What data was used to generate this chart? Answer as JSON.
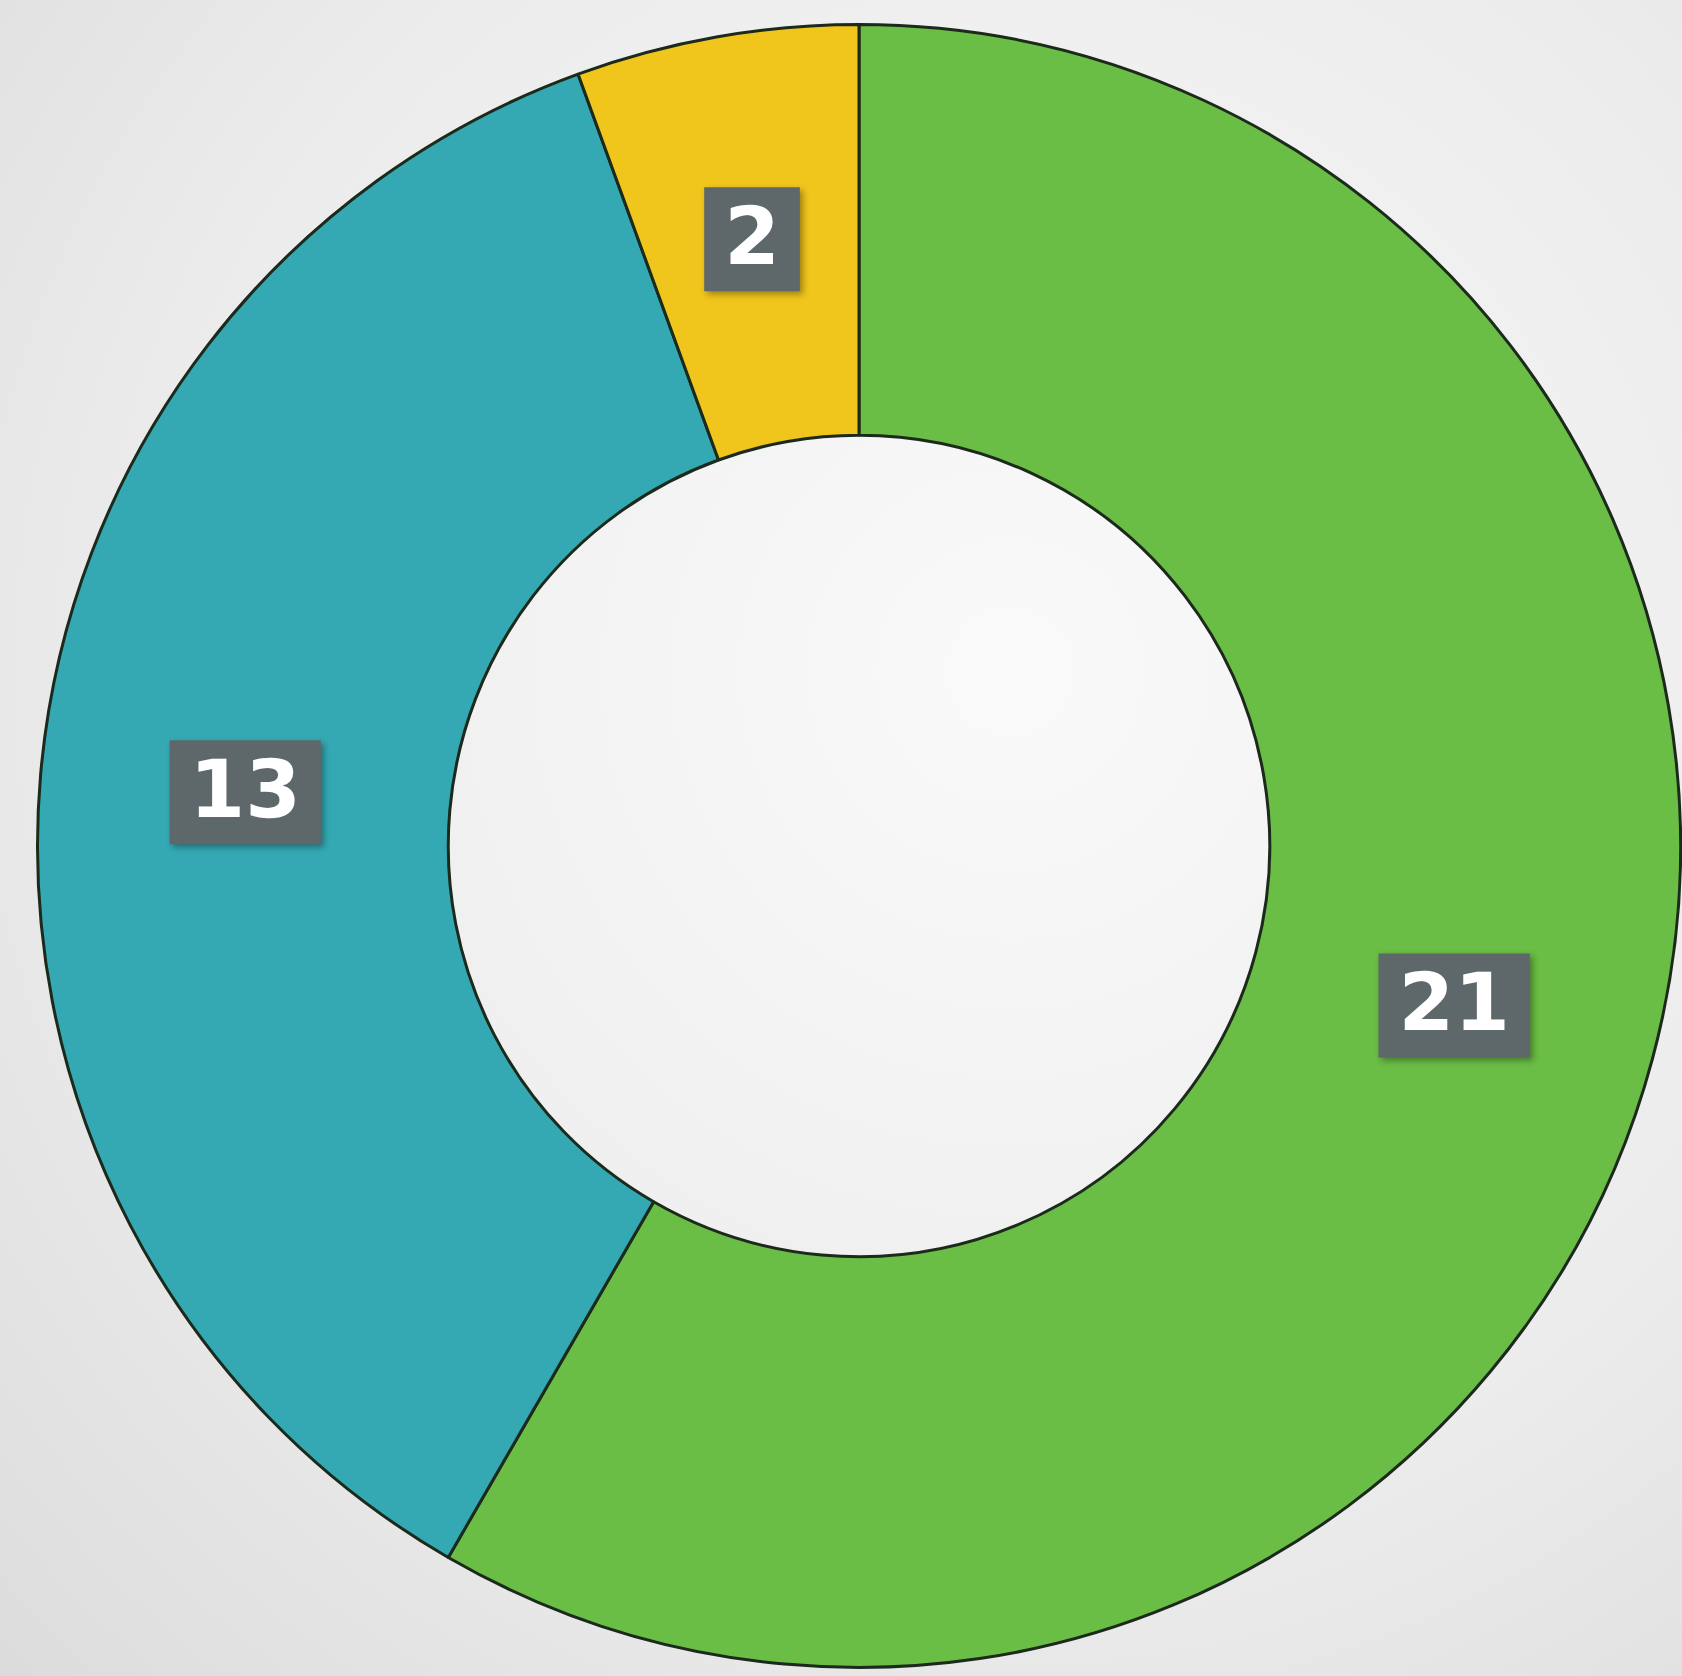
{
  "chart_data": {
    "type": "donut",
    "categories": [
      null,
      null,
      null
    ],
    "values": [
      21,
      13,
      2
    ],
    "colors": [
      "#6abd45",
      "#34a9b3",
      "#f0c51c"
    ],
    "data_labels": true
  }
}
